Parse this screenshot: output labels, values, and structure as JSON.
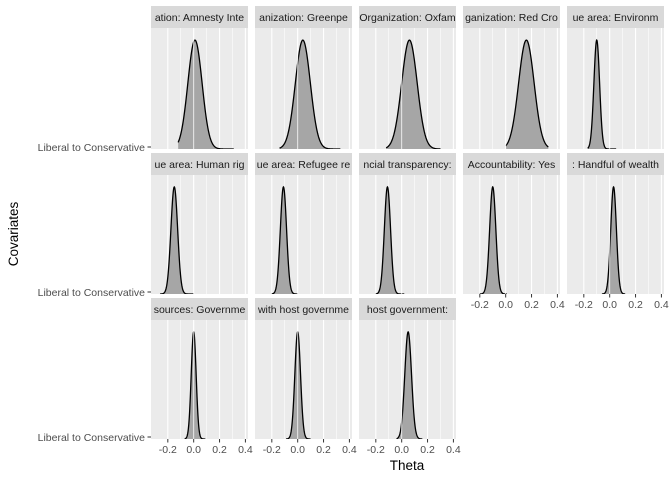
{
  "chart_data": {
    "type": "area",
    "xlabel": "Theta",
    "ylabel": "Covariates",
    "y_category": "Liberal to Conservative",
    "xlim": [
      -0.33,
      0.42
    ],
    "x_ticks": [
      -0.2,
      -0.1,
      0.0,
      0.1,
      0.2,
      0.3,
      0.4
    ],
    "x_tick_labels": [
      "-0.2",
      "0.0",
      "0.2",
      "0.4"
    ],
    "grid": true,
    "facet_layout": "5 columns x 3 rows, free y",
    "fill_color": "#a6a6a6",
    "line_color": "#000000",
    "panel_background": "#ebebeb",
    "strip_background": "#d9d9d9",
    "facets": [
      {
        "label": "ation: Amnesty Inte",
        "mean": 0.01,
        "sd": 0.055,
        "tail": [
          -0.12,
          0.31
        ]
      },
      {
        "label": "anization: Greenpe",
        "mean": 0.04,
        "sd": 0.058,
        "tail": [
          -0.14,
          0.33
        ]
      },
      {
        "label": "Organization: Oxfam",
        "mean": 0.06,
        "sd": 0.06,
        "tail": [
          -0.12,
          0.3
        ]
      },
      {
        "label": "ganization: Red Cro",
        "mean": 0.16,
        "sd": 0.06,
        "tail": [
          0.0,
          0.33
        ]
      },
      {
        "label": "ue area: Environm",
        "mean": -0.1,
        "sd": 0.022,
        "tail": [
          -0.17,
          0.05
        ]
      },
      {
        "label": "ue area: Human rig",
        "mean": -0.15,
        "sd": 0.026,
        "tail": [
          -0.26,
          0.0
        ]
      },
      {
        "label": "ue area: Refugee re",
        "mean": -0.11,
        "sd": 0.024,
        "tail": [
          -0.2,
          0.0
        ]
      },
      {
        "label": "ncial transparency:",
        "mean": -0.11,
        "sd": 0.024,
        "tail": [
          -0.2,
          0.02
        ]
      },
      {
        "label": "Accountability: Yes",
        "mean": -0.1,
        "sd": 0.024,
        "tail": [
          -0.2,
          0.01
        ]
      },
      {
        "label": ": Handful of wealth",
        "mean": 0.03,
        "sd": 0.022,
        "tail": [
          -0.06,
          0.12
        ]
      },
      {
        "label": "sources: Governme",
        "mean": 0.0,
        "sd": 0.019,
        "tail": [
          -0.07,
          0.09
        ]
      },
      {
        "label": "with host governme",
        "mean": 0.0,
        "sd": 0.022,
        "tail": [
          -0.09,
          0.1
        ]
      },
      {
        "label": "host government:",
        "mean": 0.05,
        "sd": 0.026,
        "tail": [
          -0.04,
          0.16
        ]
      }
    ]
  }
}
